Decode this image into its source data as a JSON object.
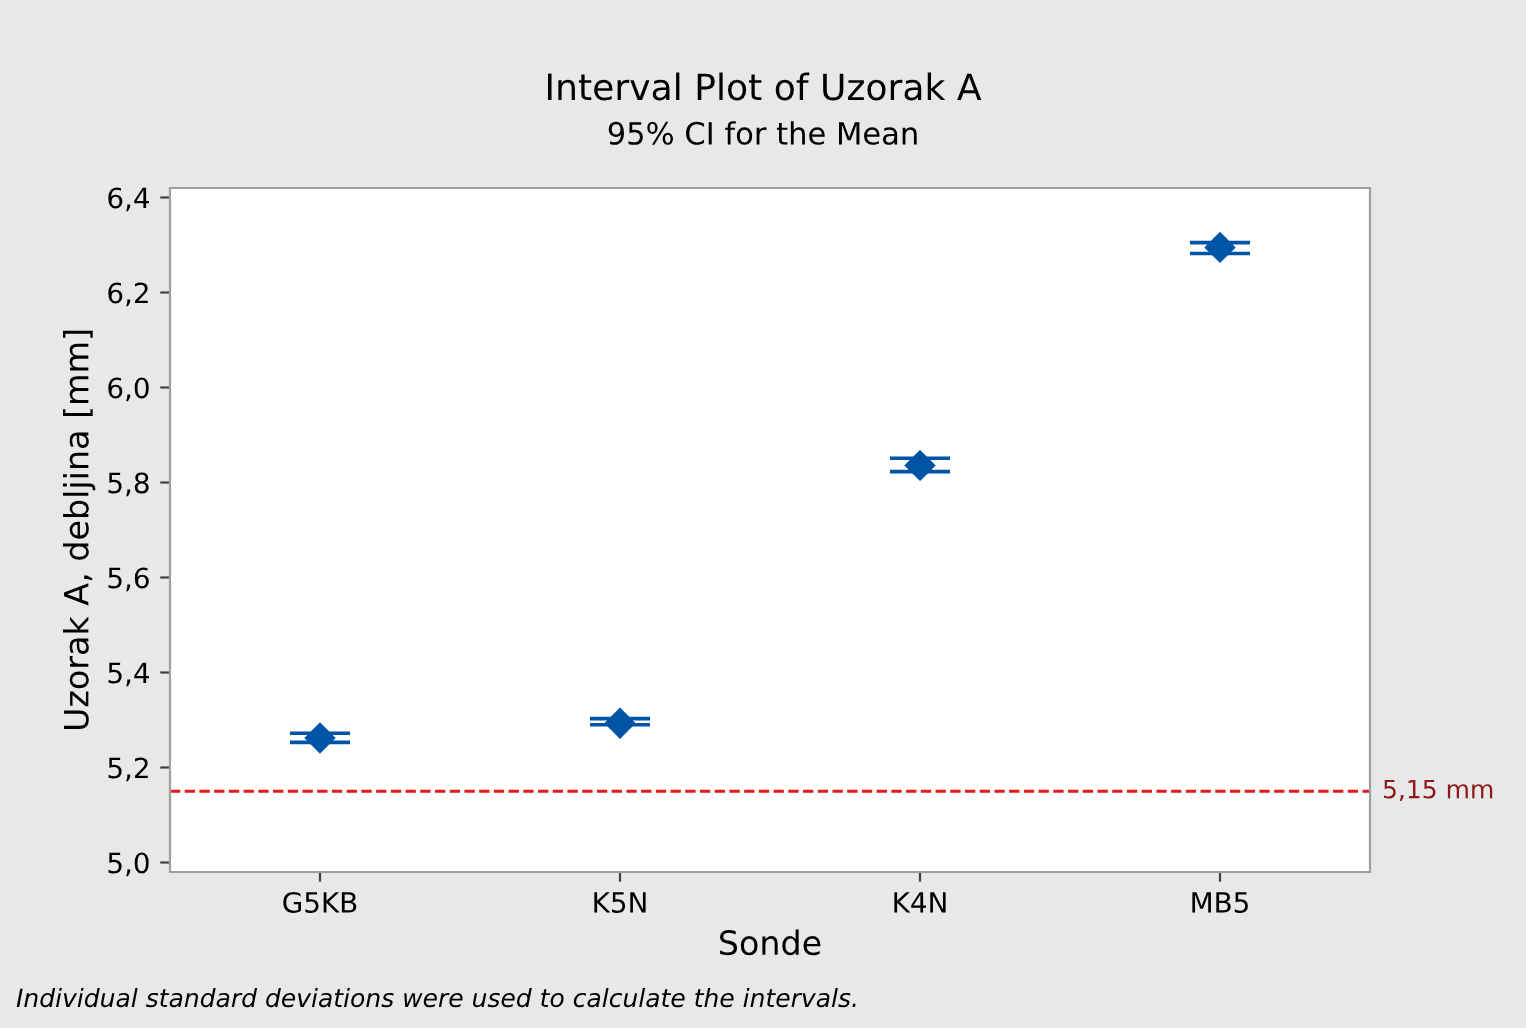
{
  "chart_data": {
    "type": "scatter",
    "title": "Interval Plot of Uzorak A",
    "subtitle": "95% CI for the Mean",
    "xlabel": "Sonde",
    "ylabel": "Uzorak A, debljina [mm]",
    "categories": [
      "G5KB",
      "K5N",
      "K4N",
      "MB5"
    ],
    "values": [
      5.262,
      5.293,
      5.836,
      6.295
    ],
    "errors": [
      [
        5.253,
        5.272
      ],
      [
        5.29,
        5.303
      ],
      [
        5.823,
        5.851
      ],
      [
        6.282,
        6.305
      ]
    ],
    "color": "#0054a6",
    "marker": "diamond",
    "ylim": [
      4.98,
      6.42
    ],
    "yticks": [
      {
        "value": 5.0,
        "label": "5,0"
      },
      {
        "value": 5.2,
        "label": "5,2"
      },
      {
        "value": 5.4,
        "label": "5,4"
      },
      {
        "value": 5.6,
        "label": "5,6"
      },
      {
        "value": 5.8,
        "label": "5,8"
      },
      {
        "value": 6.0,
        "label": "6,0"
      },
      {
        "value": 6.2,
        "label": "6,2"
      },
      {
        "value": 6.4,
        "label": "6,4"
      }
    ],
    "ref_lines": [
      {
        "axis": "y",
        "value": 5.15,
        "label": "5,15 mm",
        "color": "#e31a1c",
        "line_style": "dashed"
      }
    ],
    "annotations": [
      "Individual standard deviations were used to calculate the intervals."
    ],
    "grid": false,
    "legend": false
  }
}
